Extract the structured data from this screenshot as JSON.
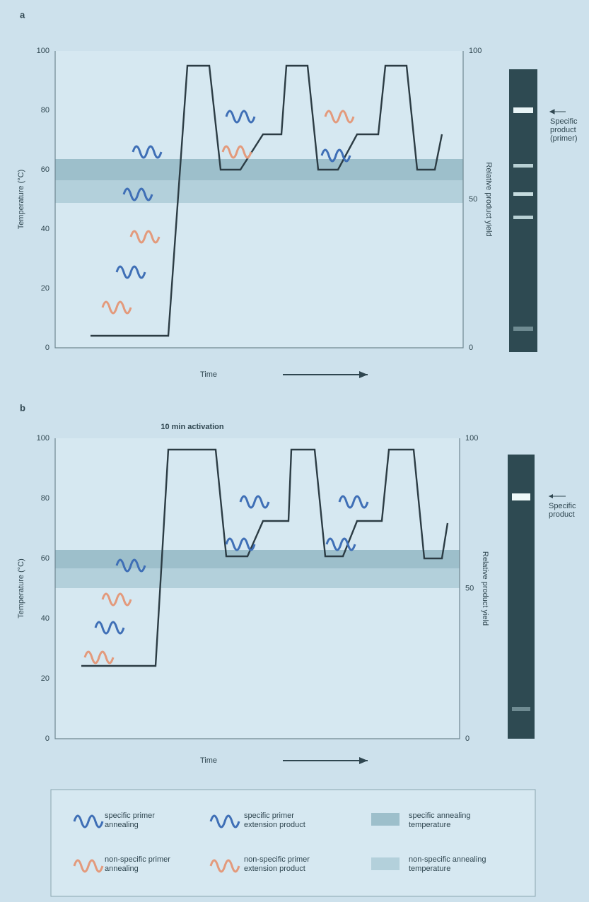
{
  "panels": [
    {
      "label": "a",
      "y_axis_title": "Temperature (°C)",
      "y2_axis_title": "Relative product yield",
      "x_axis_title": "Time",
      "yticks": [
        "100",
        "80",
        "60",
        "40",
        "20",
        "0"
      ],
      "y2ticks": [
        "100",
        "50",
        "0"
      ],
      "gel_labels": [
        "Specific",
        "product",
        "(primer)"
      ]
    },
    {
      "label": "b",
      "annotation": "10 min activation",
      "y_axis_title": "Temperature (°C)",
      "y2_axis_title": "Relative product yield",
      "x_axis_title": "Time",
      "yticks": [
        "100",
        "80",
        "60",
        "40",
        "20",
        "0"
      ],
      "y2ticks": [
        "100",
        "50",
        "0"
      ],
      "gel_labels": [
        "Specific",
        "product"
      ]
    }
  ],
  "legend": [
    {
      "label": "specific primer annealing"
    },
    {
      "label": "specific primer extension product"
    },
    {
      "label": "specific annealing temperature"
    },
    {
      "label": "non-specific primer annealing"
    },
    {
      "label": "non-specific primer extension product"
    },
    {
      "label": "non-specific annealing temperature"
    }
  ]
}
